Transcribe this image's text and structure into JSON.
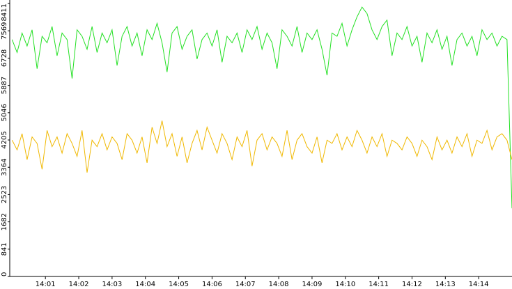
{
  "chart_data": {
    "type": "line",
    "x": [
      0,
      0.15,
      0.3,
      0.45,
      0.6,
      0.75,
      0.9,
      1.05,
      1.2,
      1.35,
      1.5,
      1.65,
      1.8,
      1.95,
      2.1,
      2.25,
      2.4,
      2.55,
      2.7,
      2.85,
      3,
      3.15,
      3.3,
      3.45,
      3.6,
      3.75,
      3.9,
      4.05,
      4.2,
      4.35,
      4.5,
      4.65,
      4.8,
      4.95,
      5.1,
      5.25,
      5.4,
      5.55,
      5.7,
      5.85,
      6,
      6.15,
      6.3,
      6.45,
      6.6,
      6.75,
      6.9,
      7.05,
      7.2,
      7.35,
      7.5,
      7.65,
      7.8,
      7.95,
      8.1,
      8.25,
      8.4,
      8.55,
      8.7,
      8.85,
      9,
      9.15,
      9.3,
      9.45,
      9.6,
      9.75,
      9.9,
      10.05,
      10.2,
      10.35,
      10.5,
      10.65,
      10.8,
      10.95,
      11.1,
      11.25,
      11.4,
      11.55,
      11.7,
      11.85,
      12,
      12.15,
      12.3,
      12.45,
      12.6,
      12.75,
      12.9,
      13.05,
      13.2,
      13.35,
      13.5,
      13.65,
      13.8,
      13.95,
      14.1,
      14.25,
      14.4,
      14.55,
      14.7,
      14.85,
      15
    ],
    "series": [
      {
        "color": "#22e022",
        "values": [
          7300,
          6900,
          7500,
          7100,
          7600,
          6400,
          7400,
          7200,
          7700,
          6800,
          7500,
          7300,
          6100,
          7600,
          7400,
          7000,
          7700,
          6900,
          7500,
          7200,
          7600,
          6500,
          7400,
          7700,
          7100,
          7500,
          6800,
          7600,
          7300,
          7800,
          7200,
          6300,
          7500,
          7700,
          7000,
          7400,
          7600,
          6700,
          7300,
          7500,
          7100,
          7600,
          6600,
          7400,
          7200,
          7500,
          6900,
          7600,
          7300,
          7700,
          7000,
          7500,
          7200,
          6400,
          7600,
          7400,
          7100,
          7700,
          6900,
          7500,
          7300,
          7600,
          7000,
          6200,
          7500,
          7400,
          7800,
          7100,
          7600,
          8000,
          8300,
          8100,
          7600,
          7300,
          7700,
          7900,
          6800,
          7500,
          7300,
          7700,
          7100,
          7400,
          6600,
          7500,
          7200,
          7600,
          7000,
          7400,
          6500,
          7300,
          7500,
          7100,
          7400,
          6800,
          7600,
          7300,
          7500,
          7100,
          7400,
          7300,
          2100
        ]
      },
      {
        "color": "#f0b800",
        "values": [
          4200,
          3900,
          4400,
          3600,
          4300,
          4100,
          3300,
          4500,
          4000,
          4300,
          3800,
          4400,
          4100,
          3700,
          4500,
          3200,
          4200,
          4000,
          4400,
          3900,
          4300,
          4100,
          3600,
          4400,
          4200,
          3800,
          4300,
          3500,
          4600,
          4100,
          4800,
          4000,
          4400,
          3700,
          4300,
          3500,
          4100,
          4500,
          3900,
          4600,
          4200,
          3800,
          4400,
          4100,
          3600,
          4300,
          4000,
          4500,
          3400,
          4200,
          4400,
          3900,
          4300,
          4100,
          3700,
          4500,
          3600,
          4200,
          4400,
          4000,
          3800,
          4300,
          3500,
          4200,
          4100,
          4400,
          3900,
          4300,
          4000,
          4500,
          4200,
          3800,
          4300,
          4000,
          4400,
          3700,
          4200,
          4100,
          3900,
          4300,
          4100,
          3700,
          4200,
          4000,
          3600,
          4300,
          3900,
          4200,
          3800,
          4300,
          4000,
          4400,
          3700,
          4200,
          4100,
          4500,
          3900,
          4300,
          4400,
          4200,
          3600
        ]
      }
    ],
    "xlim": [
      -0.07,
      15
    ],
    "xticks": [
      {
        "value": 1,
        "label": "14:01"
      },
      {
        "value": 2,
        "label": "14:02"
      },
      {
        "value": 3,
        "label": "14:03"
      },
      {
        "value": 4,
        "label": "14:04"
      },
      {
        "value": 5,
        "label": "14:05"
      },
      {
        "value": 6,
        "label": "14:06"
      },
      {
        "value": 7,
        "label": "14:07"
      },
      {
        "value": 8,
        "label": "14:08"
      },
      {
        "value": 9,
        "label": "14:09"
      },
      {
        "value": 10,
        "label": "14:10"
      },
      {
        "value": 11,
        "label": "14:11"
      },
      {
        "value": 12,
        "label": "14:12"
      },
      {
        "value": 13,
        "label": "14:13"
      },
      {
        "value": 14,
        "label": "14:14"
      }
    ],
    "ylim": [
      0,
      8411
    ],
    "yticks": [
      0,
      841,
      1682,
      2523,
      3364,
      4205,
      5046,
      5887,
      6728,
      7569,
      8411
    ]
  }
}
